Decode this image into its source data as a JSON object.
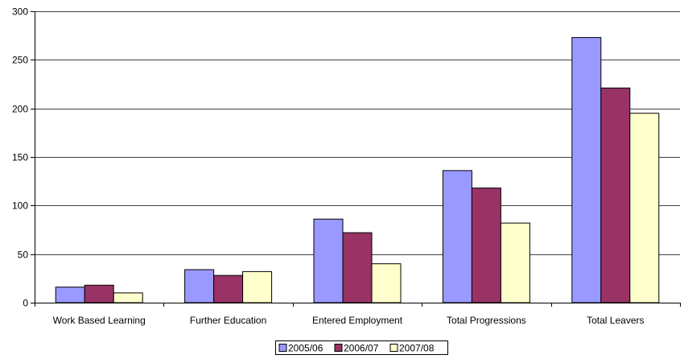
{
  "chart_data": {
    "type": "bar",
    "title": "",
    "xlabel": "",
    "ylabel": "",
    "ylim": [
      0,
      300
    ],
    "yticks": [
      0,
      50,
      100,
      150,
      200,
      250,
      300
    ],
    "grid": true,
    "legend_position": "bottom",
    "categories": [
      "Work Based Learning",
      "Further Education",
      "Entered Employment",
      "Total Progressions",
      "Total Leavers"
    ],
    "series": [
      {
        "name": "2005/06",
        "color": "#9999ff",
        "values": [
          16,
          34,
          86,
          136,
          273
        ]
      },
      {
        "name": "2006/07",
        "color": "#993366",
        "values": [
          18,
          28,
          72,
          118,
          221
        ]
      },
      {
        "name": "2007/08",
        "color": "#ffffcc",
        "values": [
          10,
          32,
          40,
          82,
          195
        ]
      }
    ]
  }
}
